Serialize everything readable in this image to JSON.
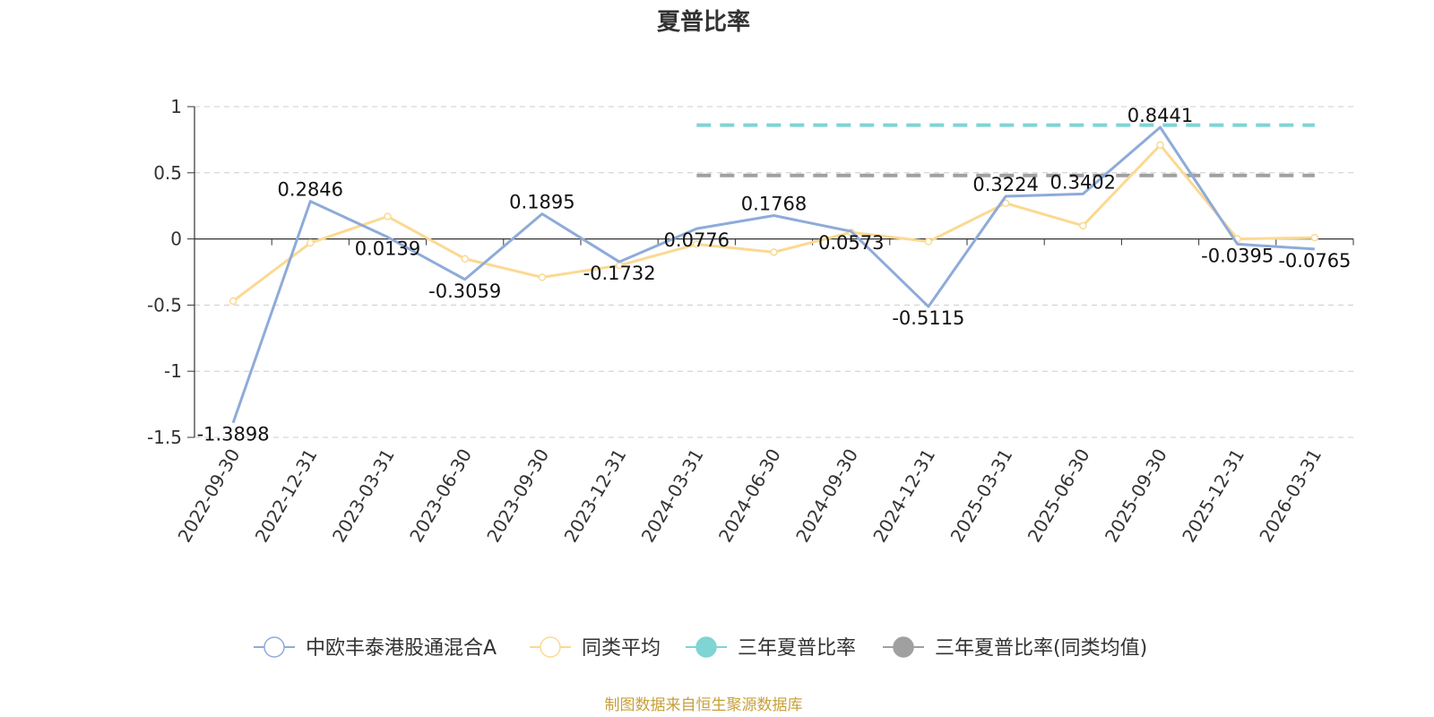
{
  "chart_data": {
    "type": "line",
    "title": "夏普比率",
    "categories": [
      "2022-09-30",
      "2022-12-31",
      "2023-03-31",
      "2023-06-30",
      "2023-09-30",
      "2023-12-31",
      "2024-03-31",
      "2024-06-30",
      "2024-09-30",
      "2024-12-31",
      "2025-03-31",
      "2025-06-30",
      "2025-09-30",
      "2025-12-31",
      "2026-03-31"
    ],
    "y_ticks": [
      "1",
      "0.5",
      "0",
      "-0.5",
      "-1",
      "-1.5"
    ],
    "ylim": [
      -1.5,
      1
    ],
    "grid": true,
    "legend_position": "bottom",
    "series": [
      {
        "name": "中欧丰泰港股通混合A",
        "color": "#8eabd9",
        "values": [
          -1.3898,
          0.2846,
          0.0139,
          -0.3059,
          0.1895,
          -0.1732,
          0.0776,
          0.1768,
          0.0573,
          -0.5115,
          0.3224,
          0.3402,
          0.8441,
          -0.0395,
          -0.0765
        ],
        "labels": [
          "-1.3898",
          "0.2846",
          "0.0139",
          "-0.3059",
          "0.1895",
          "-0.1732",
          "0.0776",
          "0.1768",
          "0.0573",
          "-0.5115",
          "0.3224",
          "0.3402",
          "0.8441",
          "-0.0395",
          "-0.0765"
        ]
      },
      {
        "name": "同类平均",
        "color": "#fbd993",
        "values": [
          -0.47,
          -0.03,
          0.17,
          -0.15,
          -0.29,
          -0.2,
          -0.04,
          -0.1,
          0.05,
          -0.02,
          0.27,
          0.1,
          0.71,
          0.0,
          0.01
        ]
      }
    ],
    "reference_lines": [
      {
        "name": "三年夏普比率",
        "color": "#7fd4d4",
        "value": 0.86,
        "from_index": 6,
        "to_index": 14
      },
      {
        "name": "三年夏普比率(同类均值)",
        "color": "#a0a0a0",
        "value": 0.48,
        "from_index": 6,
        "to_index": 14
      }
    ]
  },
  "source_text": "制图数据来自恒生聚源数据库"
}
